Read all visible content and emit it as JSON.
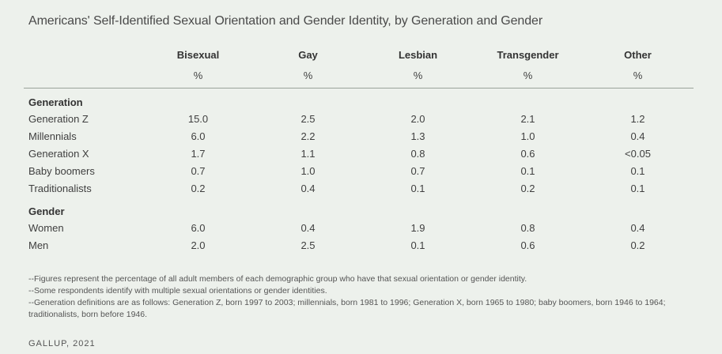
{
  "title": "Americans' Self-Identified Sexual Orientation and Gender Identity, by Generation and Gender",
  "columns": [
    "Bisexual",
    "Gay",
    "Lesbian",
    "Transgender",
    "Other"
  ],
  "units": [
    "%",
    "%",
    "%",
    "%",
    "%"
  ],
  "groups": [
    {
      "label": "Generation",
      "rows": [
        {
          "label": "Generation Z",
          "values": [
            "15.0",
            "2.5",
            "2.0",
            "2.1",
            "1.2"
          ]
        },
        {
          "label": "Millennials",
          "values": [
            "6.0",
            "2.2",
            "1.3",
            "1.0",
            "0.4"
          ]
        },
        {
          "label": "Generation X",
          "values": [
            "1.7",
            "1.1",
            "0.8",
            "0.6",
            "<0.05"
          ]
        },
        {
          "label": "Baby boomers",
          "values": [
            "0.7",
            "1.0",
            "0.7",
            "0.1",
            "0.1"
          ]
        },
        {
          "label": "Traditionalists",
          "values": [
            "0.2",
            "0.4",
            "0.1",
            "0.2",
            "0.1"
          ]
        }
      ]
    },
    {
      "label": "Gender",
      "rows": [
        {
          "label": "Women",
          "values": [
            "6.0",
            "0.4",
            "1.9",
            "0.8",
            "0.4"
          ]
        },
        {
          "label": "Men",
          "values": [
            "2.0",
            "2.5",
            "0.1",
            "0.6",
            "0.2"
          ]
        }
      ]
    }
  ],
  "footnotes": [
    "--Figures represent the percentage of all adult members of each demographic group who have that sexual orientation or gender identity.",
    "--Some respondents identify with multiple sexual orientations or gender identities.",
    "--Generation definitions are as follows: Generation Z, born 1997 to 2003; millennials, born 1981 to 1996; Generation X, born 1965 to 1980; baby boomers, born 1946 to 1964; traditionalists, born before 1946."
  ],
  "source": "GALLUP, 2021"
}
